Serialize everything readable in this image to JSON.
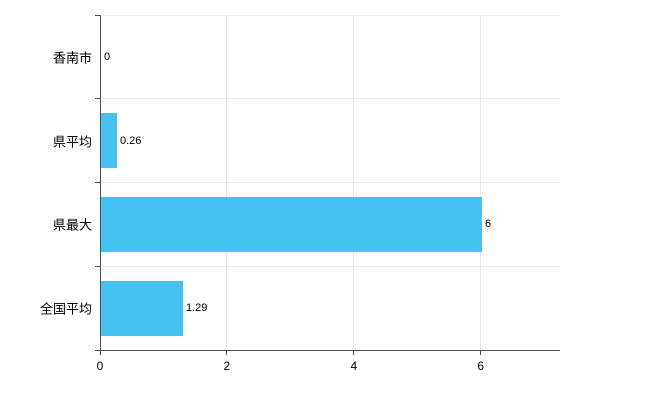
{
  "chart_data": {
    "type": "bar",
    "orientation": "horizontal",
    "title": "",
    "categories": [
      "香南市",
      "県平均",
      "県最大",
      "全国平均"
    ],
    "values": [
      0,
      0.26,
      6,
      1.29
    ],
    "value_labels": [
      "0",
      "0.26",
      "6",
      "1.29"
    ],
    "xlim": [
      0,
      7.25
    ],
    "xticks": [
      0,
      2,
      4,
      6
    ],
    "xtick_labels": [
      "0",
      "2",
      "4",
      "6"
    ],
    "grid": true,
    "legend": "none",
    "bar_color": "#45c2f0",
    "axis_color": "#4d4d4d",
    "gridline_color": "#e6e6e6",
    "background_color": "#ffffff"
  }
}
